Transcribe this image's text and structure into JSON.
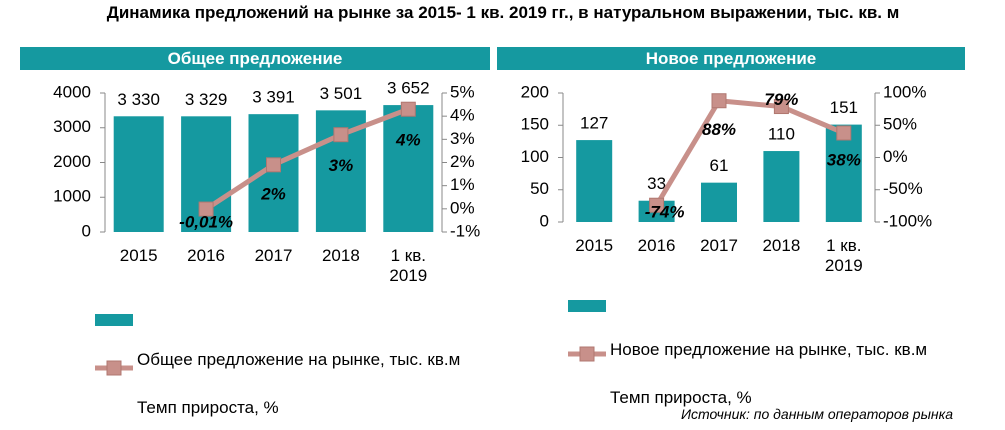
{
  "title": "Динамика предложений на рынке за 2015- 1 кв. 2019 гг., в натуральном выражении, тыс. кв. м",
  "chart_data": [
    {
      "type": "bar",
      "title": "Общее предложение",
      "categories": [
        "2015",
        "2016",
        "2017",
        "2018",
        "1 кв. 2019"
      ],
      "series": [
        {
          "name": "Общее предложение на рынке, тыс. кв.м",
          "color": "#1599a0",
          "values": [
            3330,
            3329,
            3391,
            3501,
            3652
          ],
          "value_labels": [
            "3 330",
            "3 329",
            "3 391",
            "3 501",
            "3 652"
          ]
        },
        {
          "name": "Темп прироста, %",
          "type": "line",
          "axis": "y2",
          "color": "#c8908a",
          "values": [
            null,
            -0.01,
            1.9,
            3.2,
            4.3
          ],
          "value_labels": [
            null,
            "-0,01%",
            "2%",
            "3%",
            "4%"
          ]
        }
      ],
      "ylim": [
        0,
        4000
      ],
      "yticks": [
        0,
        1000,
        2000,
        3000,
        4000
      ],
      "y2lim": [
        -1,
        5
      ],
      "y2ticks": [
        {
          "value": -1,
          "label": "-1%"
        },
        {
          "value": 0,
          "label": "0%"
        },
        {
          "value": 1,
          "label": "1%"
        },
        {
          "value": 2,
          "label": "2%"
        },
        {
          "value": 3,
          "label": "3%"
        },
        {
          "value": 4,
          "label": "4%"
        },
        {
          "value": 5,
          "label": "5%"
        }
      ]
    },
    {
      "type": "bar",
      "title": "Новое предложение",
      "categories": [
        "2015",
        "2016",
        "2017",
        "2018",
        "1 кв. 2019"
      ],
      "series": [
        {
          "name": "Новое предложение на рынке, тыс. кв.м",
          "color": "#1599a0",
          "values": [
            127,
            33,
            61,
            110,
            151
          ]
        },
        {
          "name": "Темп прироста, %",
          "type": "line",
          "axis": "y2",
          "color": "#c8908a",
          "values": [
            null,
            -74,
            88,
            79,
            38
          ],
          "value_labels": [
            null,
            "-74%",
            "88%",
            "79%",
            "38%"
          ]
        }
      ],
      "ylim": [
        0,
        200
      ],
      "yticks": [
        0,
        50,
        100,
        150,
        200
      ],
      "y2lim": [
        -100,
        100
      ],
      "y2ticks": [
        {
          "value": -100,
          "label": "-100%"
        },
        {
          "value": -50,
          "label": "-50%"
        },
        {
          "value": 0,
          "label": "0%"
        },
        {
          "value": 50,
          "label": "50%"
        },
        {
          "value": 100,
          "label": "100%"
        }
      ]
    }
  ],
  "source": "Источник: по данным операторов рынка"
}
